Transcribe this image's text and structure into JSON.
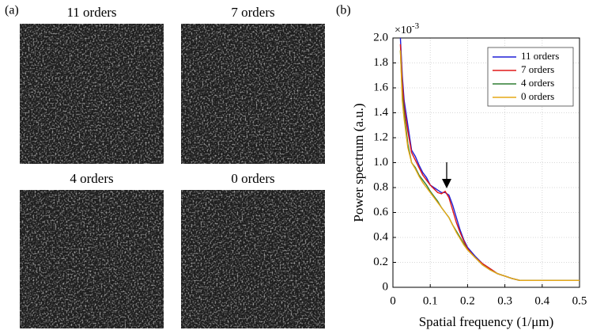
{
  "panel_a": {
    "label": "(a)",
    "images": [
      {
        "title": "11 orders"
      },
      {
        "title": "7 orders"
      },
      {
        "title": "4 orders"
      },
      {
        "title": "0 orders"
      }
    ]
  },
  "panel_b_label": "(b)",
  "chart_data": {
    "type": "line",
    "xlabel": "Spatial frequency (1/μm)",
    "ylabel": "Power spectrum (a.u.)",
    "y_multiplier": {
      "base": "×10",
      "exponent": "-3"
    },
    "x": [
      0.02,
      0.025,
      0.03,
      0.04,
      0.05,
      0.06,
      0.07,
      0.08,
      0.09,
      0.1,
      0.11,
      0.12,
      0.13,
      0.14,
      0.15,
      0.16,
      0.17,
      0.18,
      0.19,
      0.2,
      0.22,
      0.24,
      0.26,
      0.28,
      0.3,
      0.32,
      0.34,
      0.36,
      0.4,
      0.45,
      0.5
    ],
    "series": [
      {
        "name": "11 orders",
        "color": "#1f1fd6",
        "values": [
          2.0,
          1.7,
          1.5,
          1.3,
          1.1,
          1.05,
          0.98,
          0.92,
          0.88,
          0.82,
          0.8,
          0.78,
          0.76,
          0.76,
          0.74,
          0.66,
          0.56,
          0.46,
          0.38,
          0.32,
          0.25,
          0.19,
          0.15,
          0.11,
          0.09,
          0.07,
          0.055,
          0.055,
          0.055,
          0.055,
          0.055
        ]
      },
      {
        "name": "7 orders",
        "color": "#e01818",
        "values": [
          1.95,
          1.65,
          1.45,
          1.25,
          1.08,
          1.02,
          0.96,
          0.9,
          0.86,
          0.82,
          0.79,
          0.76,
          0.75,
          0.77,
          0.72,
          0.62,
          0.52,
          0.44,
          0.37,
          0.31,
          0.24,
          0.19,
          0.15,
          0.11,
          0.09,
          0.07,
          0.055,
          0.055,
          0.055,
          0.055,
          0.055
        ]
      },
      {
        "name": "4 orders",
        "color": "#2e7d32",
        "values": [
          1.9,
          1.55,
          1.4,
          1.15,
          1.0,
          0.96,
          0.9,
          0.86,
          0.82,
          0.77,
          0.73,
          0.69,
          0.64,
          0.6,
          0.56,
          0.5,
          0.45,
          0.4,
          0.35,
          0.3,
          0.24,
          0.18,
          0.14,
          0.11,
          0.09,
          0.07,
          0.055,
          0.055,
          0.055,
          0.055,
          0.055
        ]
      },
      {
        "name": "0 orders",
        "color": "#e6a817",
        "values": [
          1.9,
          1.5,
          1.35,
          1.12,
          1.0,
          0.95,
          0.89,
          0.84,
          0.8,
          0.76,
          0.72,
          0.68,
          0.64,
          0.6,
          0.56,
          0.5,
          0.44,
          0.39,
          0.34,
          0.3,
          0.24,
          0.18,
          0.14,
          0.11,
          0.09,
          0.07,
          0.055,
          0.055,
          0.055,
          0.055,
          0.055
        ]
      }
    ],
    "xlim": [
      0,
      0.5
    ],
    "xticks": [
      0,
      0.1,
      0.2,
      0.3,
      0.4,
      0.5
    ],
    "ylim": [
      0,
      2.0
    ],
    "yticks": [
      0,
      0.2,
      0.4,
      0.6,
      0.8,
      {
        "value": 1.0,
        "label": "1.0"
      },
      1.2,
      1.4,
      1.6,
      1.8,
      {
        "value": 2.0,
        "label": "2.0"
      }
    ],
    "grid": true,
    "legend": "upper right"
  }
}
